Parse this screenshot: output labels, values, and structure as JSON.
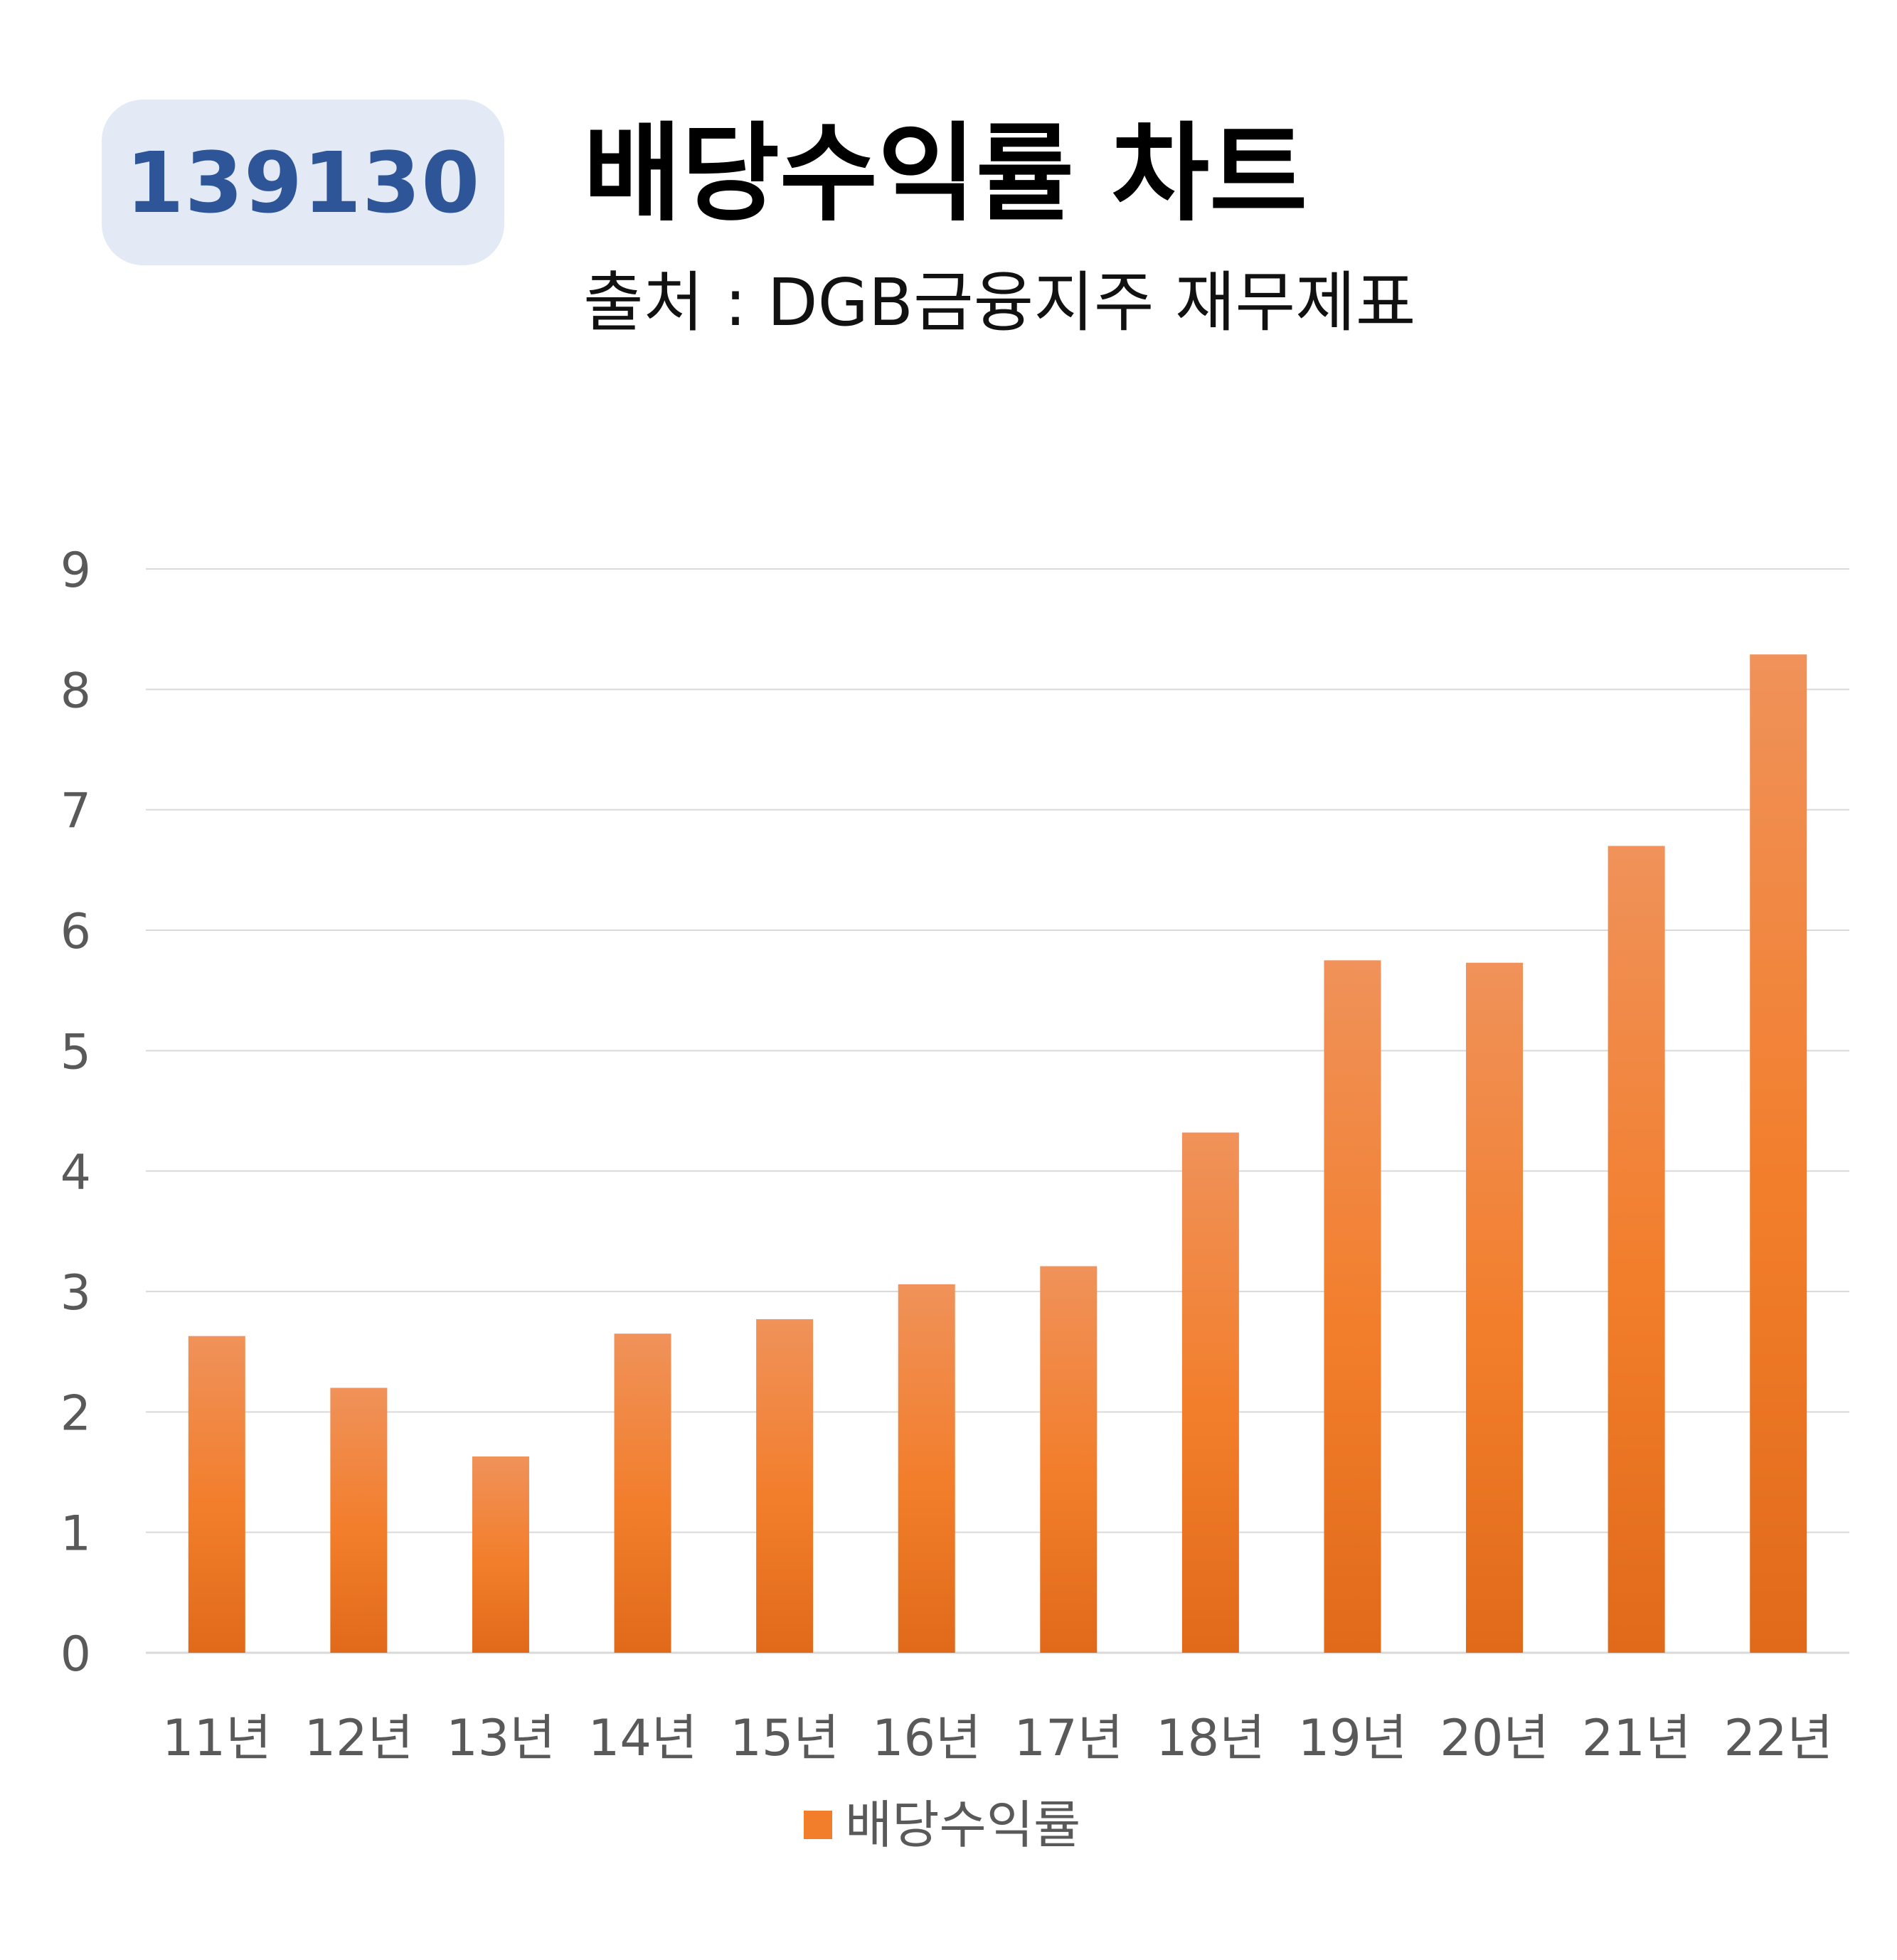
{
  "header": {
    "code": "139130",
    "title": "배당수익률 차트",
    "subtitle": "출처 : DGB금융지주 재무제표"
  },
  "colors": {
    "badge_bg": "#e3eaf6",
    "badge_text": "#2d5597",
    "bar_top": "#f0925a",
    "bar_mid": "#f27d2a",
    "bar_bottom": "#e06a1a",
    "gridline": "#d9d9d9",
    "axis_text": "#595959"
  },
  "chart_data": {
    "type": "bar",
    "categories": [
      "11년",
      "12년",
      "13년",
      "14년",
      "15년",
      "16년",
      "17년",
      "18년",
      "19년",
      "20년",
      "21년",
      "22년"
    ],
    "series": [
      {
        "name": "배당수익률",
        "values": [
          2.63,
          2.2,
          1.63,
          2.65,
          2.77,
          3.06,
          3.21,
          4.32,
          5.75,
          5.73,
          6.7,
          8.29
        ]
      }
    ],
    "ylim": [
      0,
      9
    ],
    "yticks": [
      "0",
      "1",
      "2",
      "3",
      "4",
      "5",
      "6",
      "7",
      "8",
      "9"
    ],
    "grid": true,
    "legend": "bottom"
  }
}
